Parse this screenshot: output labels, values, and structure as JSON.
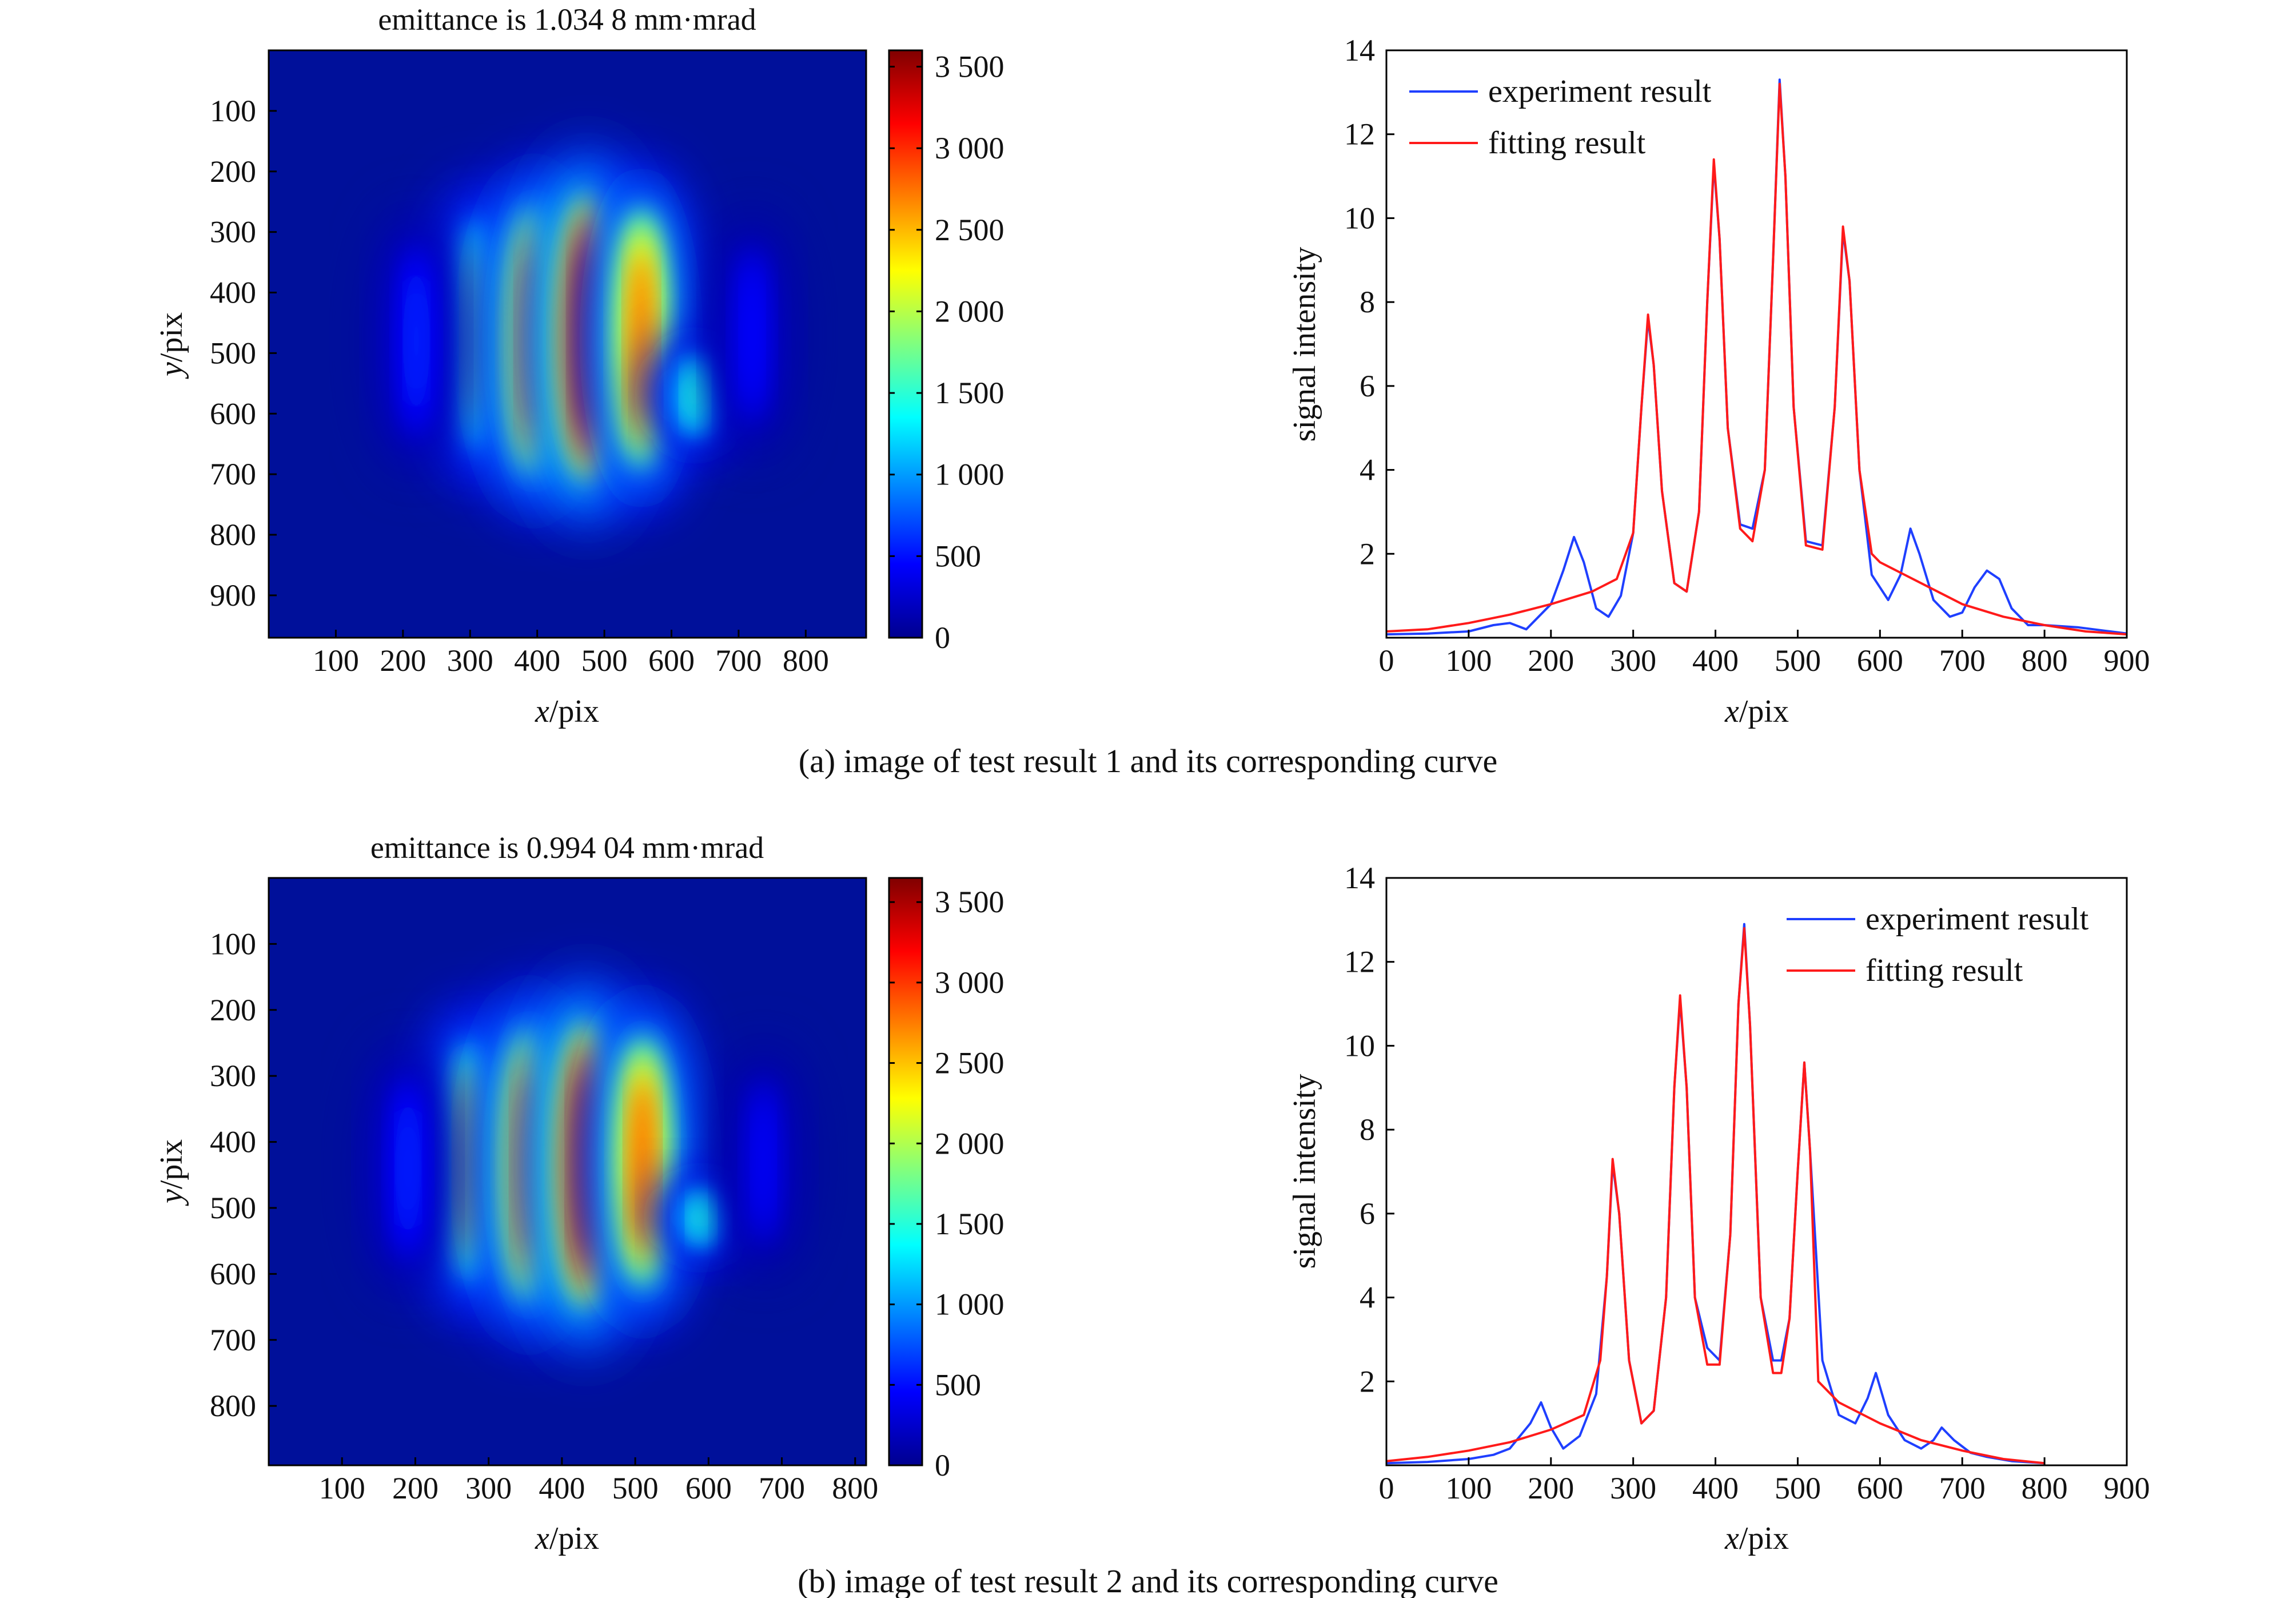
{
  "panels": [
    {
      "caption": "(a) image of test result 1 and its corresponding curve",
      "image": {
        "title": "emittance is 1.034 8 mm·mrad",
        "xlabel_var": "x",
        "xlabel_unit": "/pix",
        "ylabel_var": "y",
        "ylabel_unit": "/pix",
        "xticks": [
          "100",
          "200",
          "300",
          "400",
          "500",
          "600",
          "700",
          "800"
        ],
        "xrange": [
          0,
          890
        ],
        "yticks": [
          "100",
          "200",
          "300",
          "400",
          "500",
          "600",
          "700",
          "800",
          "900"
        ],
        "yrange": [
          0,
          970
        ],
        "stripes": [
          {
            "x": 310,
            "peak": 2000,
            "y_top": 280,
            "y_bottom": 660
          },
          {
            "x": 395,
            "peak": 3000,
            "y_top": 260,
            "y_bottom": 700
          },
          {
            "x": 475,
            "peak": 3500,
            "y_top": 240,
            "y_bottom": 710
          },
          {
            "x": 555,
            "peak": 2800,
            "y_top": 260,
            "y_bottom": 690
          },
          {
            "x": 635,
            "peak": 1500,
            "y_top": 500,
            "y_bottom": 640
          },
          {
            "x": 220,
            "peak": 600,
            "y_top": 320,
            "y_bottom": 640
          },
          {
            "x": 720,
            "peak": 500,
            "y_top": 320,
            "y_bottom": 620
          }
        ]
      },
      "colorbar": {
        "ticks": [
          "0",
          "500",
          "1 000",
          "1 500",
          "2 000",
          "2 500",
          "3 000",
          "3 500"
        ],
        "tick_values": [
          0,
          500,
          1000,
          1500,
          2000,
          2500,
          3000,
          3500
        ],
        "range": [
          0,
          3600
        ]
      },
      "chart_data": {
        "type": "line",
        "xlabel_var": "x",
        "xlabel_unit": "/pix",
        "ylabel": "signal intensity",
        "xlim": [
          0,
          900
        ],
        "ylim": [
          0,
          14
        ],
        "xticks": [
          "0",
          "100",
          "200",
          "300",
          "400",
          "500",
          "600",
          "700",
          "800",
          "900"
        ],
        "yticks": [
          "2",
          "4",
          "6",
          "8",
          "10",
          "12",
          "14"
        ],
        "legend_position": "top-left",
        "series": [
          {
            "name": "experiment result",
            "color": "#1f3fff",
            "x": [
              0,
              50,
              100,
              130,
              150,
              170,
              200,
              215,
              228,
              240,
              255,
              270,
              285,
              300,
              310,
              318,
              325,
              335,
              350,
              365,
              380,
              390,
              398,
              405,
              415,
              430,
              445,
              460,
              470,
              478,
              485,
              495,
              510,
              530,
              545,
              555,
              563,
              575,
              590,
              610,
              625,
              637,
              648,
              665,
              685,
              700,
              715,
              730,
              745,
              760,
              780,
              800,
              840,
              880,
              900
            ],
            "y": [
              0.08,
              0.1,
              0.15,
              0.3,
              0.35,
              0.2,
              0.8,
              1.6,
              2.4,
              1.8,
              0.7,
              0.5,
              1.0,
              2.5,
              5.5,
              7.6,
              6.5,
              3.5,
              1.3,
              1.1,
              3.0,
              8.0,
              11.3,
              9.5,
              5.0,
              2.7,
              2.6,
              4.0,
              9.0,
              13.3,
              11.0,
              5.5,
              2.3,
              2.2,
              5.5,
              9.7,
              8.5,
              4.0,
              1.5,
              0.9,
              1.5,
              2.6,
              2.0,
              0.9,
              0.5,
              0.6,
              1.2,
              1.6,
              1.4,
              0.7,
              0.3,
              0.3,
              0.25,
              0.15,
              0.1
            ]
          },
          {
            "name": "fitting result",
            "color": "#ff1a1a",
            "x": [
              0,
              50,
              100,
              150,
              200,
              250,
              280,
              300,
              310,
              318,
              325,
              335,
              350,
              365,
              380,
              390,
              398,
              405,
              415,
              430,
              445,
              460,
              470,
              478,
              485,
              495,
              510,
              530,
              545,
              555,
              563,
              575,
              590,
              600,
              630,
              670,
              700,
              750,
              800,
              850,
              900
            ],
            "y": [
              0.15,
              0.2,
              0.35,
              0.55,
              0.8,
              1.1,
              1.4,
              2.5,
              5.5,
              7.7,
              6.5,
              3.5,
              1.3,
              1.1,
              3.0,
              8.0,
              11.4,
              9.5,
              5.0,
              2.6,
              2.3,
              4.0,
              9.0,
              13.2,
              11.0,
              5.5,
              2.2,
              2.1,
              5.5,
              9.8,
              8.5,
              4.0,
              2.0,
              1.8,
              1.5,
              1.1,
              0.8,
              0.5,
              0.3,
              0.15,
              0.08
            ]
          }
        ]
      }
    },
    {
      "caption": "(b) image of test result 2 and its corresponding curve",
      "image": {
        "title": "emittance is 0.994 04 mm·mrad",
        "xlabel_var": "x",
        "xlabel_unit": "/pix",
        "ylabel_var": "y",
        "ylabel_unit": "/pix",
        "xticks": [
          "100",
          "200",
          "300",
          "400",
          "500",
          "600",
          "700",
          "800"
        ],
        "xrange": [
          0,
          815
        ],
        "yticks": [
          "100",
          "200",
          "300",
          "400",
          "500",
          "600",
          "700",
          "800"
        ],
        "yrange": [
          0,
          890
        ],
        "stripes": [
          {
            "x": 275,
            "peak": 2400,
            "y_top": 250,
            "y_bottom": 610
          },
          {
            "x": 355,
            "peak": 3000,
            "y_top": 230,
            "y_bottom": 640
          },
          {
            "x": 433,
            "peak": 3500,
            "y_top": 220,
            "y_bottom": 650
          },
          {
            "x": 510,
            "peak": 2900,
            "y_top": 240,
            "y_bottom": 620
          },
          {
            "x": 590,
            "peak": 1500,
            "y_top": 470,
            "y_bottom": 560
          },
          {
            "x": 190,
            "peak": 600,
            "y_top": 300,
            "y_bottom": 580
          },
          {
            "x": 675,
            "peak": 450,
            "y_top": 300,
            "y_bottom": 560
          }
        ]
      },
      "colorbar": {
        "ticks": [
          "0",
          "500",
          "1 000",
          "1 500",
          "2 000",
          "2 500",
          "3 000",
          "3 500"
        ],
        "tick_values": [
          0,
          500,
          1000,
          1500,
          2000,
          2500,
          3000,
          3500
        ],
        "range": [
          0,
          3650
        ]
      },
      "chart_data": {
        "type": "line",
        "xlabel_var": "x",
        "xlabel_unit": "/pix",
        "ylabel": "signal intensity",
        "xlim": [
          0,
          900
        ],
        "ylim": [
          0,
          14
        ],
        "xticks": [
          "0",
          "100",
          "200",
          "300",
          "400",
          "500",
          "600",
          "700",
          "800",
          "900"
        ],
        "yticks": [
          "2",
          "4",
          "6",
          "8",
          "10",
          "12",
          "14"
        ],
        "legend_position": "top-right",
        "series": [
          {
            "name": "experiment result",
            "color": "#1f3fff",
            "x": [
              0,
              50,
              100,
              130,
              150,
              175,
              188,
              200,
              215,
              235,
              255,
              268,
              275,
              283,
              295,
              310,
              325,
              340,
              350,
              357,
              365,
              375,
              390,
              405,
              418,
              428,
              435,
              442,
              455,
              470,
              480,
              490,
              500,
              508,
              515,
              530,
              550,
              570,
              585,
              595,
              610,
              630,
              650,
              665,
              675,
              690,
              710,
              730,
              760,
              800
            ],
            "y": [
              0.05,
              0.08,
              0.15,
              0.25,
              0.4,
              1.0,
              1.5,
              0.9,
              0.4,
              0.7,
              1.7,
              4.5,
              7.2,
              6.0,
              2.5,
              1.0,
              1.3,
              4.0,
              9.0,
              11.1,
              9.0,
              4.0,
              2.8,
              2.5,
              5.5,
              11.0,
              12.9,
              10.5,
              4.0,
              2.5,
              2.5,
              3.5,
              7.0,
              9.6,
              7.5,
              2.5,
              1.2,
              1.0,
              1.6,
              2.2,
              1.2,
              0.6,
              0.4,
              0.6,
              0.9,
              0.6,
              0.3,
              0.2,
              0.1,
              0.05
            ]
          },
          {
            "name": "fitting result",
            "color": "#ff1a1a",
            "x": [
              0,
              50,
              100,
              150,
              200,
              240,
              260,
              268,
              275,
              283,
              295,
              310,
              325,
              340,
              350,
              357,
              365,
              375,
              390,
              405,
              418,
              428,
              435,
              442,
              455,
              470,
              480,
              490,
              500,
              508,
              515,
              525,
              550,
              600,
              650,
              700,
              750,
              800
            ],
            "y": [
              0.1,
              0.2,
              0.35,
              0.55,
              0.85,
              1.2,
              2.5,
              4.5,
              7.3,
              6.0,
              2.5,
              1.0,
              1.3,
              4.0,
              9.0,
              11.2,
              9.0,
              4.0,
              2.4,
              2.4,
              5.5,
              11.0,
              12.8,
              10.5,
              4.0,
              2.2,
              2.2,
              3.5,
              7.0,
              9.6,
              7.5,
              2.0,
              1.5,
              1.0,
              0.6,
              0.35,
              0.15,
              0.05
            ]
          }
        ]
      }
    }
  ]
}
